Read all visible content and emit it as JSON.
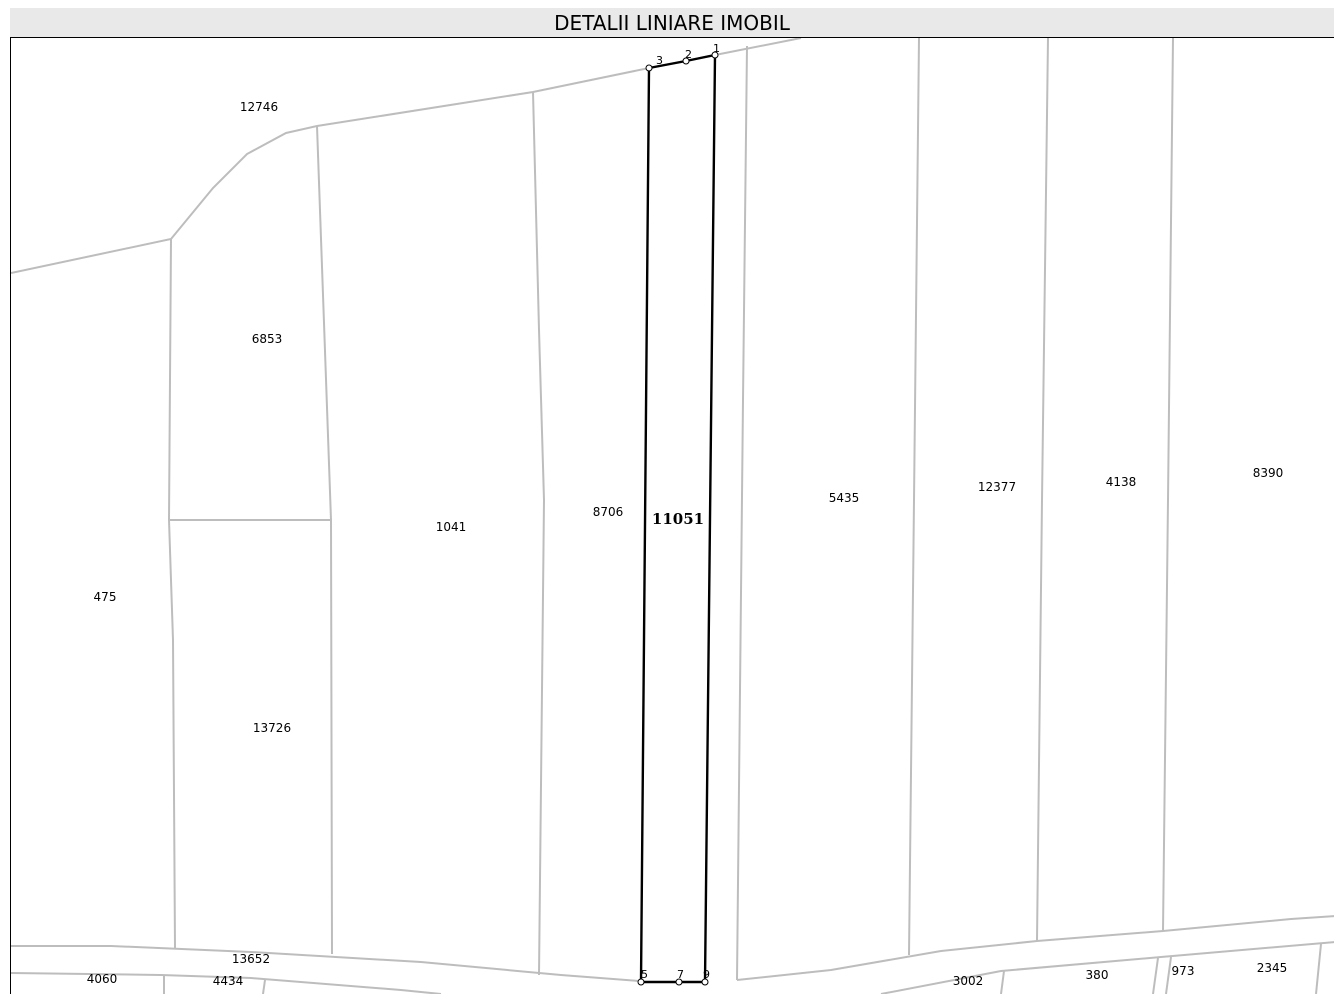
{
  "header": {
    "title": "DETALII LINIARE IMOBIL"
  },
  "map": {
    "target_parcel": "11051",
    "parcel_labels": [
      "12746",
      "6853",
      "475",
      "13726",
      "1041",
      "8706",
      "5435",
      "12377",
      "4138",
      "8390",
      "13652",
      "4060",
      "4434",
      "3002",
      "380",
      "973",
      "2345"
    ],
    "vertex_labels": [
      "1",
      "2",
      "3",
      "5",
      "7",
      "9"
    ]
  },
  "colors": {
    "parcel_border": "#bdbdbd",
    "target_border": "#000000",
    "header_bg": "#e9e9e9"
  }
}
